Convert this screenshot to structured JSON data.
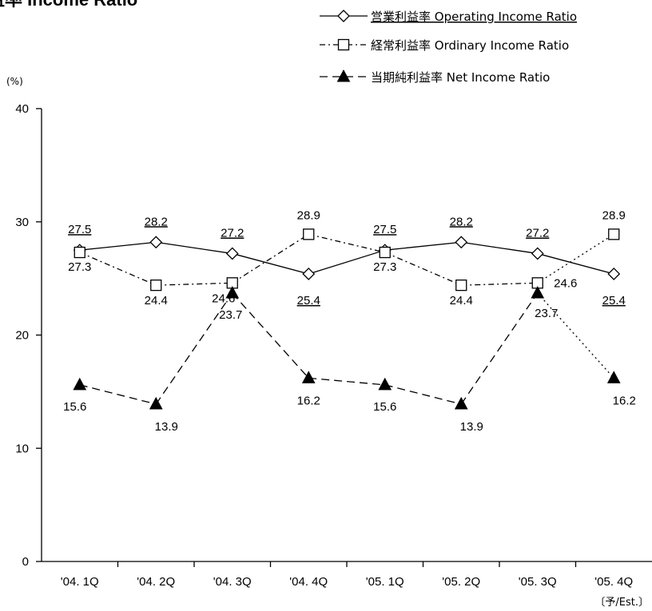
{
  "chart_data": {
    "type": "line",
    "title": "利益率 Income Ratio",
    "ylabel": "(%)",
    "ylim": [
      0,
      40
    ],
    "yticks": [
      "0",
      "10",
      "20",
      "30",
      "40"
    ],
    "categories": [
      "'04. 1Q",
      "'04. 2Q",
      "'04. 3Q",
      "'04. 4Q",
      "'05. 1Q",
      "'05. 2Q",
      "'05. 3Q",
      "'05. 4Q"
    ],
    "x_note": "〔予/Est.〕",
    "grid": false,
    "legend_position": "top-right",
    "series": [
      {
        "name": "営業利益率 Operating Income Ratio",
        "marker": "diamond",
        "line": "solid",
        "values": [
          27.5,
          28.2,
          27.2,
          25.4,
          27.5,
          28.2,
          27.2,
          25.4
        ],
        "labels": [
          "27.5",
          "28.2",
          "27.2",
          "25.4",
          "27.5",
          "28.2",
          "27.2",
          "25.4"
        ]
      },
      {
        "name": "経常利益率 Ordinary Income Ratio",
        "marker": "square",
        "line": "dash-dot",
        "values": [
          27.3,
          24.4,
          24.6,
          28.9,
          27.3,
          24.4,
          24.6,
          28.9
        ],
        "labels": [
          "27.3",
          "24.4",
          "24.6",
          "28.9",
          "27.3",
          "24.4",
          "24.6",
          "28.9"
        ]
      },
      {
        "name": "当期純利益率 Net Income Ratio",
        "marker": "triangle",
        "line": "dashed",
        "values": [
          15.6,
          13.9,
          23.7,
          16.2,
          15.6,
          13.9,
          23.7,
          16.2
        ],
        "labels": [
          "15.6",
          "13.9",
          "23.7",
          "16.2",
          "15.6",
          "13.9",
          "23.7",
          "16.2"
        ]
      }
    ]
  }
}
